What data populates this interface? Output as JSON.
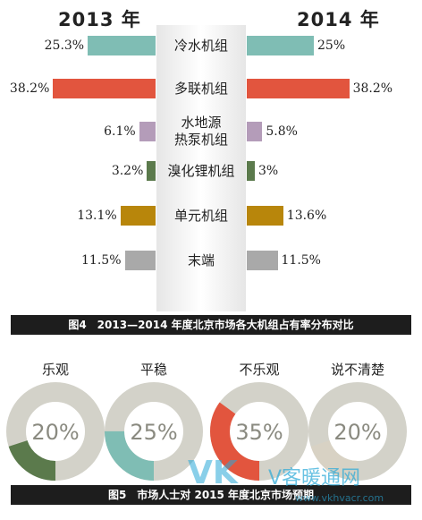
{
  "chart_data": [
    {
      "type": "bar",
      "title": "图4　2013—2014 年度北京市场各大机组占有率分布对比",
      "categories": [
        "冷水机组",
        "多联机组",
        "水地源\n热泵机组",
        "溴化锂机组",
        "单元机组",
        "末端"
      ],
      "series": [
        {
          "name": "2013 年",
          "values": [
            25.3,
            38.2,
            6.1,
            3.2,
            13.1,
            11.5
          ],
          "labels": [
            "25.3%",
            "38.2%",
            "6.1%",
            "3.2%",
            "13.1%",
            "11.5%"
          ]
        },
        {
          "name": "2014 年",
          "values": [
            25,
            38.2,
            5.8,
            3,
            13.6,
            11.5
          ],
          "labels": [
            "25%",
            "38.2%",
            "5.8%",
            "3%",
            "13.6%",
            "11.5%"
          ]
        }
      ],
      "colors": [
        "#7fbdb4",
        "#e2553e",
        "#b49cb9",
        "#5b7a4c",
        "#b8860b",
        "#a9a9a9"
      ]
    },
    {
      "type": "pie",
      "title": "图5　市场人士对 2015 年度北京市场预期",
      "categories": [
        "乐观",
        "平稳",
        "不乐观",
        "说不清楚"
      ],
      "values": [
        20,
        25,
        35,
        20
      ],
      "labels": [
        "20%",
        "25%",
        "35%",
        "20%"
      ],
      "colors": [
        "#5b7a4c",
        "#7fbdb4",
        "#e2553e",
        "#d8d2c4"
      ],
      "track_color": "#d3d2c9"
    }
  ],
  "watermark": {
    "logo": "VK",
    "text": "V客暖通网",
    "url": "www.vkhvacr.com"
  }
}
